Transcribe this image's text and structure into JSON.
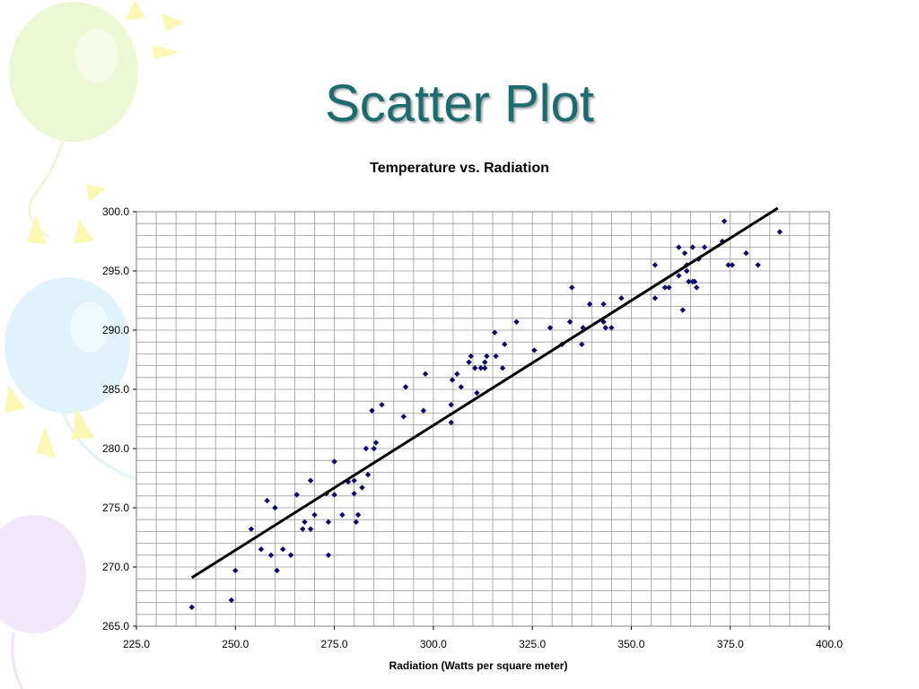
{
  "slide": {
    "title": "Scatter Plot"
  },
  "colors": {
    "title": "#1b6b6f",
    "points": "#0a0a6b",
    "trendline": "#000000",
    "grid": "#9a9a9a"
  },
  "chart_data": {
    "type": "scatter",
    "title": "Temperature vs. Radiation",
    "xlabel": "Radiation (Watts per square meter)",
    "ylabel": "",
    "xlim": [
      225.0,
      400.0
    ],
    "ylim": [
      265.0,
      300.0
    ],
    "x_ticks": [
      "225.0",
      "250.0",
      "275.0",
      "300.0",
      "325.0",
      "350.0",
      "375.0",
      "400.0"
    ],
    "y_ticks": [
      "265.0",
      "270.0",
      "275.0",
      "280.0",
      "285.0",
      "290.0",
      "295.0",
      "300.0"
    ],
    "grid": true,
    "legend": "none",
    "trendline": {
      "x": [
        239.0,
        387.0
      ],
      "y": [
        269.1,
        300.3
      ]
    },
    "series": [
      {
        "points": [
          [
            239.0,
            266.6
          ],
          [
            249.0,
            267.2
          ],
          [
            250.0,
            269.7
          ],
          [
            254.0,
            273.2
          ],
          [
            256.5,
            271.5
          ],
          [
            258.0,
            275.6
          ],
          [
            259.0,
            271.0
          ],
          [
            260.0,
            275.0
          ],
          [
            260.5,
            269.7
          ],
          [
            262.0,
            271.5
          ],
          [
            264.0,
            271.0
          ],
          [
            265.5,
            276.1
          ],
          [
            267.0,
            273.2
          ],
          [
            267.5,
            273.8
          ],
          [
            269.0,
            277.3
          ],
          [
            269.0,
            273.2
          ],
          [
            270.0,
            274.4
          ],
          [
            273.0,
            276.2
          ],
          [
            273.5,
            271.0
          ],
          [
            273.5,
            273.8
          ],
          [
            275.0,
            278.9
          ],
          [
            275.0,
            276.1
          ],
          [
            277.0,
            274.4
          ],
          [
            278.5,
            277.2
          ],
          [
            280.0,
            276.2
          ],
          [
            280.0,
            277.3
          ],
          [
            280.5,
            273.8
          ],
          [
            281.0,
            274.4
          ],
          [
            282.0,
            276.7
          ],
          [
            283.0,
            280.0
          ],
          [
            283.5,
            277.8
          ],
          [
            284.5,
            283.2
          ],
          [
            285.0,
            280.0
          ],
          [
            285.5,
            280.5
          ],
          [
            287.0,
            283.7
          ],
          [
            292.5,
            282.7
          ],
          [
            293.0,
            285.2
          ],
          [
            297.5,
            283.2
          ],
          [
            298.0,
            286.3
          ],
          [
            304.5,
            282.2
          ],
          [
            304.5,
            283.7
          ],
          [
            304.8,
            285.8
          ],
          [
            306.0,
            286.3
          ],
          [
            307.0,
            285.2
          ],
          [
            309.0,
            287.3
          ],
          [
            309.5,
            287.8
          ],
          [
            310.5,
            286.8
          ],
          [
            311.0,
            284.7
          ],
          [
            312.0,
            286.8
          ],
          [
            313.0,
            287.3
          ],
          [
            313.0,
            286.8
          ],
          [
            313.5,
            287.8
          ],
          [
            315.5,
            289.8
          ],
          [
            315.8,
            287.8
          ],
          [
            317.5,
            286.8
          ],
          [
            318.0,
            288.8
          ],
          [
            321.0,
            290.7
          ],
          [
            325.5,
            288.3
          ],
          [
            329.5,
            290.2
          ],
          [
            332.5,
            288.8
          ],
          [
            334.5,
            290.7
          ],
          [
            335.0,
            293.6
          ],
          [
            337.5,
            288.8
          ],
          [
            337.8,
            290.2
          ],
          [
            339.5,
            292.2
          ],
          [
            343.0,
            290.7
          ],
          [
            343.0,
            292.2
          ],
          [
            343.5,
            290.2
          ],
          [
            345.0,
            290.2
          ],
          [
            347.5,
            292.7
          ],
          [
            356.0,
            292.7
          ],
          [
            356.0,
            295.5
          ],
          [
            358.5,
            293.6
          ],
          [
            359.5,
            293.6
          ],
          [
            362.0,
            294.6
          ],
          [
            362.0,
            297.0
          ],
          [
            363.0,
            291.7
          ],
          [
            363.5,
            296.5
          ],
          [
            364.0,
            295.5
          ],
          [
            364.0,
            295.0
          ],
          [
            364.5,
            294.1
          ],
          [
            365.5,
            294.1
          ],
          [
            365.5,
            297.0
          ],
          [
            366.0,
            294.1
          ],
          [
            366.5,
            293.6
          ],
          [
            367.0,
            296.0
          ],
          [
            368.5,
            297.0
          ],
          [
            373.0,
            297.5
          ],
          [
            373.5,
            299.2
          ],
          [
            374.5,
            295.5
          ],
          [
            375.5,
            295.5
          ],
          [
            379.0,
            296.5
          ],
          [
            382.0,
            295.5
          ],
          [
            387.5,
            298.3
          ]
        ]
      }
    ]
  }
}
